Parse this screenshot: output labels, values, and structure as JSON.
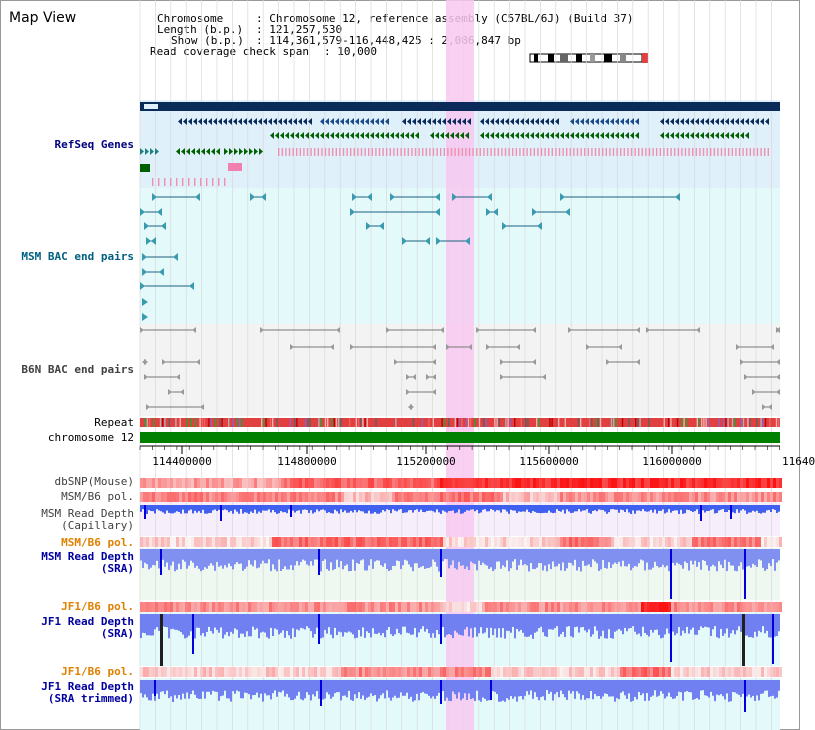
{
  "title": "Map View",
  "info": {
    "chromosome_label": "Chromosome",
    "chromosome_value": "Chromosome 12, reference assembly (C57BL/6J) (Build 37)",
    "length_label": "Length (b.p.)",
    "length_value": "121,257,530",
    "show_label": "Show (b.p.)",
    "show_value": "114,361,579-116,448,425 : 2,086,847 bp",
    "span_label": "Read coverage check span",
    "span_value": "10,000"
  },
  "tracks": {
    "refseq": "RefSeq Genes",
    "msm_bac": "MSM BAC end pairs",
    "b6n_bac": "B6N BAC end pairs",
    "repeat": "Repeat",
    "chromosome": "chromosome 12",
    "dbsnp": "dbSNP(Mouse)",
    "msm_pol1": "MSM/B6 pol.",
    "msm_depth_cap": "MSM Read Depth\n(Capillary)",
    "msm_pol2": "MSM/B6 pol.",
    "msm_depth_sra": "MSM Read Depth\n(SRA)",
    "jf1_pol1": "JF1/B6 pol.",
    "jf1_depth_sra": "JF1 Read Depth\n(SRA)",
    "jf1_pol2": "JF1/B6 pol.",
    "jf1_depth_trim": "JF1 Read Depth\n(SRA trimmed)"
  },
  "ticks": [
    "114400000",
    "114800000",
    "115200000",
    "115600000",
    "116000000",
    "11640"
  ],
  "colors": {
    "refseq_label": "#000080",
    "msm_label": "#006080",
    "b6n_label": "#404040",
    "depth_label": "#0000a0",
    "pol_label": "#e08000",
    "highlight": "#f8c8f0",
    "chromosome_bar": "#008000"
  }
}
